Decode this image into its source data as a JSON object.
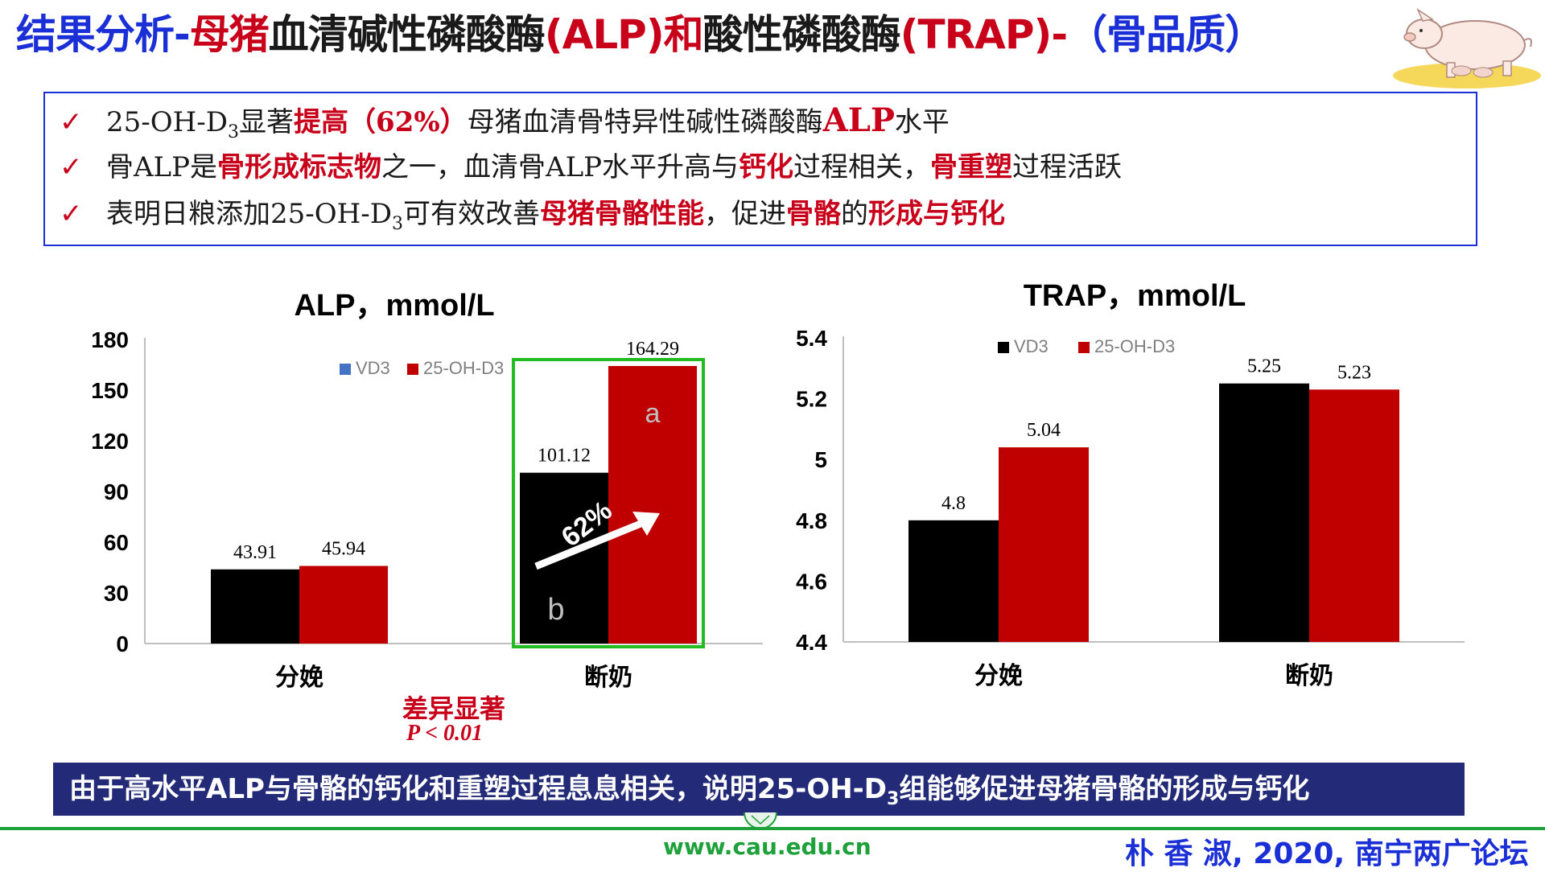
{
  "title": {
    "part1": "结果分析-",
    "part2": "母猪",
    "part3": "血清碱性磷酸酶",
    "part4": "(ALP)和",
    "part5": "酸性磷酸酶",
    "part6": "(TRAP)-",
    "part7": "（骨品质）"
  },
  "bullets": [
    {
      "check": "✓",
      "l1_a": "25-OH-D",
      "l1_sub": "3",
      "l1_b": "显著",
      "l1_hi1": "提高（62%）",
      "l1_c": "母猪血清骨特异性碱性磷酸酶",
      "l1_hi2": "ALP",
      "l1_d": "水平"
    },
    {
      "check": "✓",
      "l2_a": "骨ALP是",
      "l2_hi1": "骨形成标志物",
      "l2_b": "之一，血清骨ALP水平升高与",
      "l2_hi2": "钙化",
      "l2_c": "过程相关，",
      "l2_hi3": "骨重塑",
      "l2_d": "过程活跃"
    },
    {
      "check": "✓",
      "l3_a": "表明日粮添加25-OH-D",
      "l3_sub": "3",
      "l3_b": "可有效改善",
      "l3_hi1": "母猪骨骼性能",
      "l3_c": "，促进",
      "l3_hi2": "骨骼",
      "l3_d": "的",
      "l3_hi3": "形成与钙化"
    }
  ],
  "chart_data": [
    {
      "type": "bar",
      "title": "ALP，mmol/L",
      "categories": [
        "分娩",
        "断奶"
      ],
      "series": [
        {
          "name": "VD3",
          "values": [
            43.91,
            101.12
          ],
          "color": "#000000"
        },
        {
          "name": "25-OH-D3",
          "values": [
            45.94,
            164.29
          ],
          "color": "#c00000"
        }
      ],
      "ylim": [
        0,
        180
      ],
      "yticks": [
        "0",
        "30",
        "60",
        "90",
        "120",
        "150",
        "180"
      ],
      "data_labels": [
        "43.91",
        "101.12",
        "45.94",
        "164.29"
      ],
      "legend_colors": [
        "#4472c4",
        "#c00000"
      ],
      "legend_position": "top-right",
      "annotations": {
        "letter_a": "a",
        "letter_b": "b",
        "arrow_text": "62%"
      },
      "highlight_box_color": "#22bb22"
    },
    {
      "type": "bar",
      "title": "TRAP，mmol/L",
      "categories": [
        "分娩",
        "断奶"
      ],
      "series": [
        {
          "name": "VD3",
          "values": [
            4.8,
            5.25
          ],
          "color": "#000000"
        },
        {
          "name": "25-OH-D3",
          "values": [
            5.04,
            5.23
          ],
          "color": "#c00000"
        }
      ],
      "ylim": [
        4.4,
        5.4
      ],
      "yticks": [
        "4.4",
        "4.6",
        "4.8",
        "5",
        "5.2",
        "5.4"
      ],
      "data_labels": [
        "4.8",
        "5.25",
        "5.04",
        "5.23"
      ],
      "legend_colors": [
        "#000000",
        "#c00000"
      ],
      "legend_position": "top"
    }
  ],
  "significance": {
    "label": "差异显著",
    "p_italic": "P",
    "p_rest": " < 0.01"
  },
  "conclusion": {
    "a": "由于高水平ALP与骨骼的钙化和重塑过程息息相关，说明25-OH-D",
    "sub": "3",
    "b": "组能够促进母猪骨骼的形成与钙化"
  },
  "footer": {
    "url": "www.cau.edu.cn",
    "citation": "朴 香 淑, 2020, 南宁两广论坛"
  },
  "icons": {
    "pig": "pig-illustration",
    "seal": "university-seal",
    "check": "check-mark"
  }
}
